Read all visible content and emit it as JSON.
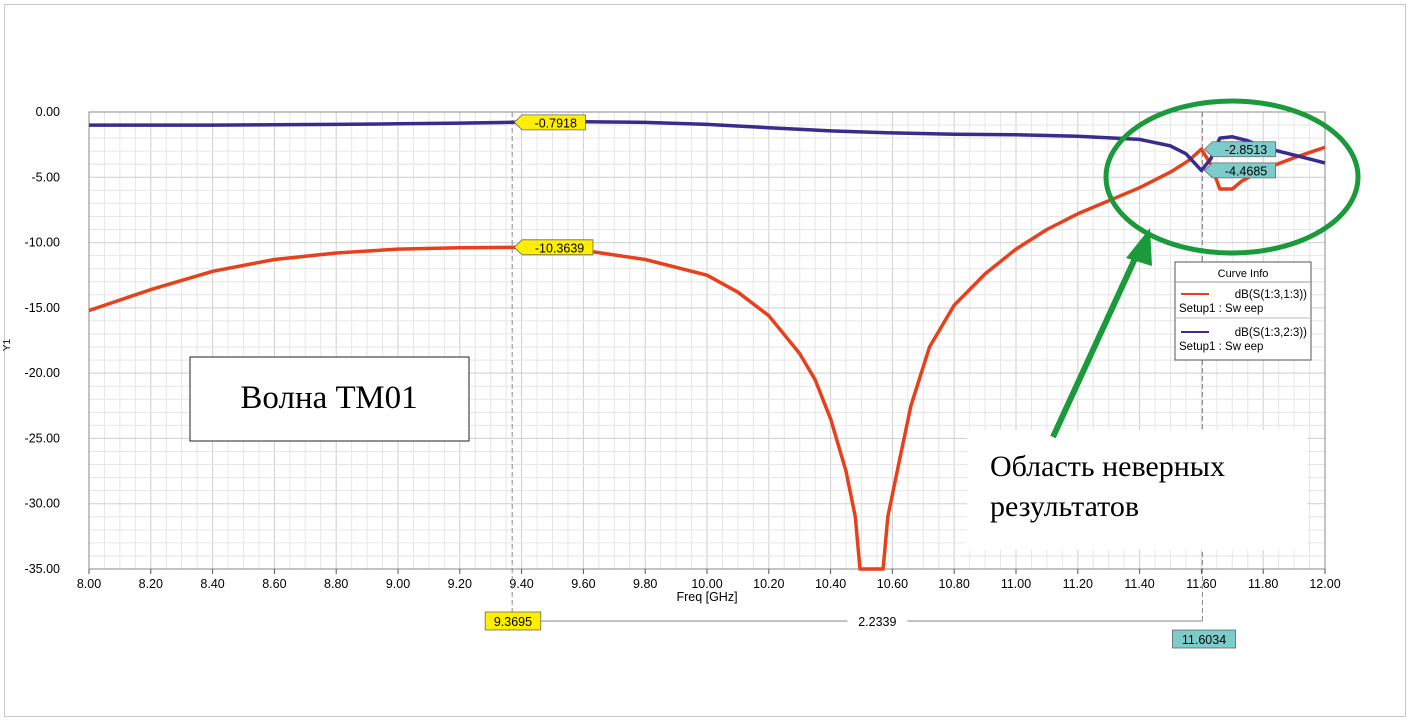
{
  "chart_data": {
    "type": "line",
    "xlabel": "Freq [GHz]",
    "ylabel": "Y1",
    "xlim": [
      8.0,
      12.0
    ],
    "ylim": [
      -35.0,
      0.0
    ],
    "x_ticks": [
      "8.00",
      "8.20",
      "8.40",
      "8.60",
      "8.80",
      "9.00",
      "9.20",
      "9.40",
      "9.60",
      "9.80",
      "10.00",
      "10.20",
      "10.40",
      "10.60",
      "10.80",
      "11.00",
      "11.20",
      "11.40",
      "11.60",
      "11.80",
      "12.00"
    ],
    "y_ticks": [
      "0.00",
      "-5.00",
      "-10.00",
      "-15.00",
      "-20.00",
      "-25.00",
      "-30.00",
      "-35.00"
    ],
    "grid": true,
    "legend": {
      "title": "Curve Info",
      "placement": "right",
      "entries": [
        {
          "name": "dB(S(1:3,1:3))",
          "sub": "Setup1 : Sw eep",
          "color": "#e8401c"
        },
        {
          "name": "dB(S(1:3,2:3))",
          "sub": "Setup1 : Sw eep",
          "color": "#3a2c8c"
        }
      ]
    },
    "series": [
      {
        "name": "dB(S(1:3,1:3))",
        "color": "#e8401c",
        "x": [
          8.0,
          8.2,
          8.4,
          8.6,
          8.8,
          9.0,
          9.2,
          9.37,
          9.6,
          9.8,
          10.0,
          10.1,
          10.2,
          10.3,
          10.35,
          10.4,
          10.45,
          10.48,
          10.495,
          10.57,
          10.585,
          10.62,
          10.66,
          10.72,
          10.8,
          10.9,
          11.0,
          11.1,
          11.2,
          11.3,
          11.4,
          11.5,
          11.56,
          11.6,
          11.63,
          11.66,
          11.7,
          11.73,
          11.8,
          11.9,
          12.0
        ],
        "y": [
          -15.2,
          -13.6,
          -12.2,
          -11.3,
          -10.8,
          -10.5,
          -10.4,
          -10.36,
          -10.6,
          -11.3,
          -12.5,
          -13.8,
          -15.6,
          -18.5,
          -20.5,
          -23.5,
          -27.5,
          -31.0,
          -35.0,
          -35.0,
          -31.0,
          -27.0,
          -22.5,
          -18.0,
          -14.8,
          -12.4,
          -10.5,
          -9.0,
          -7.8,
          -6.8,
          -5.8,
          -4.6,
          -3.7,
          -2.85,
          -4.0,
          -5.9,
          -5.9,
          -5.3,
          -4.4,
          -3.5,
          -2.7
        ]
      },
      {
        "name": "dB(S(1:3,2:3))",
        "color": "#3a2c8c",
        "x": [
          8.0,
          8.4,
          8.8,
          9.0,
          9.2,
          9.37,
          9.6,
          9.8,
          10.0,
          10.2,
          10.4,
          10.6,
          10.8,
          11.0,
          11.2,
          11.4,
          11.5,
          11.55,
          11.6,
          11.63,
          11.66,
          11.7,
          11.75,
          11.8,
          11.9,
          12.0
        ],
        "y": [
          -1.0,
          -1.0,
          -0.95,
          -0.9,
          -0.85,
          -0.79,
          -0.75,
          -0.8,
          -0.95,
          -1.2,
          -1.45,
          -1.6,
          -1.7,
          -1.75,
          -1.85,
          -2.1,
          -2.6,
          -3.2,
          -4.47,
          -3.6,
          -2.0,
          -1.9,
          -2.2,
          -2.7,
          -3.3,
          -3.9
        ]
      }
    ],
    "markers": [
      {
        "label": "-0.7918",
        "x": 9.3695,
        "y": -0.7918,
        "color": "#ffee00"
      },
      {
        "label": "-10.3639",
        "x": 9.3695,
        "y": -10.3639,
        "color": "#ffee00"
      },
      {
        "label": "-2.8513",
        "x": 11.6034,
        "y": -2.8513,
        "color": "#7ecbcb"
      },
      {
        "label": "-4.4685",
        "x": 11.6034,
        "y": -4.4685,
        "color": "#7ecbcb"
      }
    ],
    "x_markers": [
      {
        "label": "9.3695",
        "x": 9.3695,
        "color": "#ffee00"
      },
      {
        "label": "11.6034",
        "x": 11.6034,
        "color": "#7ecbcb"
      }
    ],
    "delta_label": "2.2339"
  },
  "annotations": {
    "wave_label": "Волна ТМ01",
    "error_label_line1": "Область неверных",
    "error_label_line2": "результатов",
    "highlight_color": "#1a9a3a"
  }
}
